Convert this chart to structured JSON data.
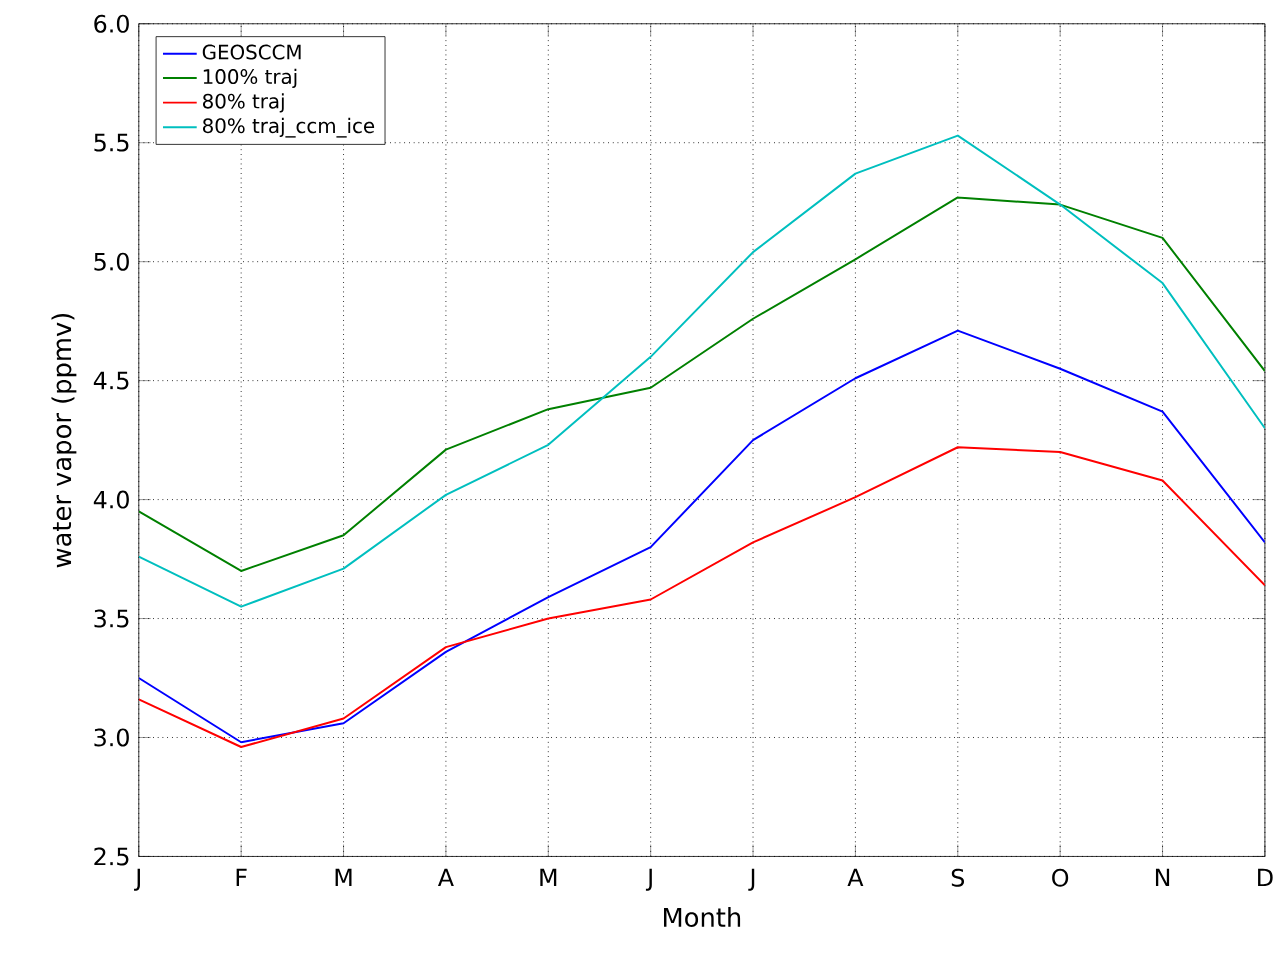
{
  "chart_data": {
    "type": "line",
    "xlabel": "Month",
    "ylabel": "water vapor (ppmv)",
    "categories": [
      "J",
      "F",
      "M",
      "A",
      "M",
      "J",
      "J",
      "A",
      "S",
      "O",
      "N",
      "D"
    ],
    "ylim": [
      2.5,
      6.0
    ],
    "yticks": [
      2.5,
      {
        "value": 3,
        "label": "3.0"
      },
      3.5,
      {
        "value": 4,
        "label": "4.0"
      },
      4.5,
      {
        "value": 5,
        "label": "5.0"
      },
      5.5,
      {
        "value": 6,
        "label": "6.0"
      }
    ],
    "grid": true,
    "legend": "top left",
    "marker": "none",
    "line_style": "solid",
    "series": [
      {
        "name": "GEOSCCM",
        "color": "#0000ff",
        "values": [
          3.25,
          2.98,
          3.06,
          3.36,
          3.59,
          3.8,
          4.25,
          4.51,
          4.71,
          4.55,
          4.37,
          3.82
        ]
      },
      {
        "name": "100% traj",
        "color": "#008000",
        "values": [
          3.95,
          3.7,
          3.85,
          4.21,
          4.38,
          4.47,
          4.76,
          5.01,
          5.27,
          5.24,
          5.1,
          4.54
        ]
      },
      {
        "name": "80% traj",
        "color": "#ff0000",
        "values": [
          3.16,
          2.96,
          3.08,
          3.38,
          3.5,
          3.58,
          3.82,
          4.01,
          4.22,
          4.2,
          4.08,
          3.64
        ]
      },
      {
        "name": "80% traj_ccm_ice",
        "color": "#00bfbf",
        "values": [
          3.76,
          3.55,
          3.71,
          4.02,
          4.23,
          4.6,
          5.04,
          5.37,
          5.53,
          5.24,
          4.91,
          4.3
        ]
      }
    ]
  }
}
